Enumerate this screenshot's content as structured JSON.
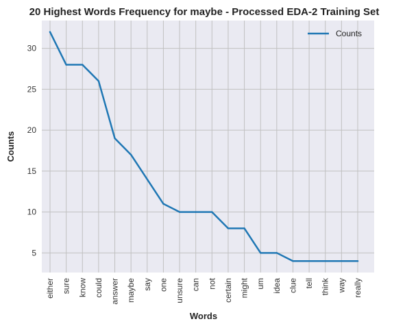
{
  "chart_data": {
    "type": "line",
    "title": "20 Highest Words Frequency for maybe - Processed EDA-2 Training Set",
    "xlabel": "Words",
    "ylabel": "Counts",
    "categories": [
      "either",
      "sure",
      "know",
      "could",
      "answer",
      "maybe",
      "say",
      "one",
      "unsure",
      "can",
      "not",
      "certain",
      "might",
      "um",
      "idea",
      "clue",
      "tell",
      "think",
      "way",
      "really"
    ],
    "series": [
      {
        "name": "Counts",
        "values": [
          32,
          28,
          28,
          26,
          19,
          17,
          14,
          11,
          10,
          10,
          10,
          8,
          8,
          5,
          5,
          4,
          4,
          4,
          4,
          4
        ]
      }
    ],
    "yticks": [
      5,
      10,
      15,
      20,
      25,
      30
    ],
    "ylim": [
      2.6,
      33.4
    ],
    "grid": true,
    "legend_position": "top-right",
    "line_color": "#1f77b4",
    "background_color": "#eaeaf2",
    "grid_color": "#c0c0c0"
  }
}
